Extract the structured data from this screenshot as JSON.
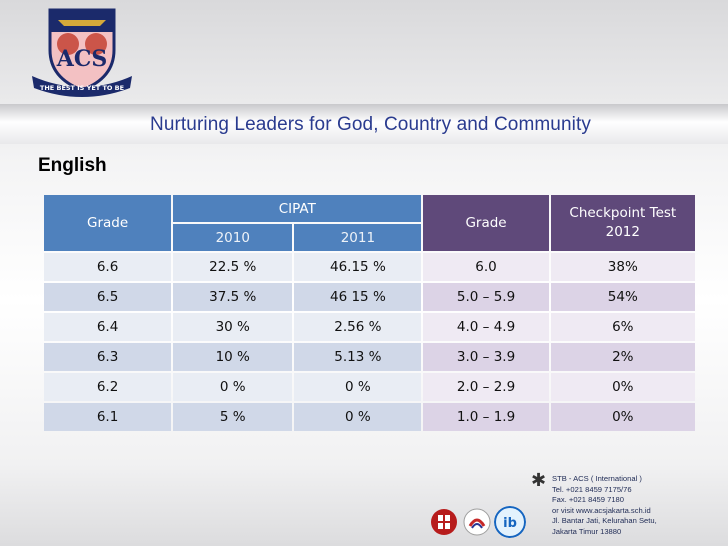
{
  "logo": {
    "monogram": "ACS",
    "ribbon": "THE BEST IS YET TO BE"
  },
  "motto": "Nurturing Leaders for God, Country and Community",
  "section_title": "English",
  "table": {
    "grade_label_left": "Grade",
    "cipat_label": "CIPAT",
    "year_2010": "2010",
    "year_2011": "2011",
    "grade_label_right": "Grade",
    "checkpoint_label": "Checkpoint Test 2012",
    "rows": [
      {
        "grade": "6.6",
        "y2010": "22.5 %",
        "y2011": "46.15 %",
        "range": "6.0",
        "checkpoint": "38%"
      },
      {
        "grade": "6.5",
        "y2010": "37.5 %",
        "y2011": "46 15 %",
        "range": "5.0 – 5.9",
        "checkpoint": "54%"
      },
      {
        "grade": "6.4",
        "y2010": "30 %",
        "y2011": "2.56 %",
        "range": "4.0 – 4.9",
        "checkpoint": "6%"
      },
      {
        "grade": "6.3",
        "y2010": "10 %",
        "y2011": "5.13 %",
        "range": "3.0 – 3.9",
        "checkpoint": "2%"
      },
      {
        "grade": "6.2",
        "y2010": "0 %",
        "y2011": "0 %",
        "range": "2.0 – 2.9",
        "checkpoint": "0%"
      },
      {
        "grade": "6.1",
        "y2010": "5 %",
        "y2011": "0 %",
        "range": "1.0 – 1.9",
        "checkpoint": "0%"
      }
    ]
  },
  "contact": {
    "line1": "STB - ACS ( International )",
    "line2": "Tel. +021 8459 7175/76",
    "line3": "Fax. +021 8459 7180",
    "line4": "or visit www.acsjakarta.sch.id",
    "line5": "Jl. Bantar Jati, Kelurahan Setu,",
    "line6": "Jakarta Timur 13880"
  },
  "colors": {
    "blue_header": "#4f81bd",
    "purple_header": "#5f497a",
    "motto_text": "#2a3b8f"
  }
}
